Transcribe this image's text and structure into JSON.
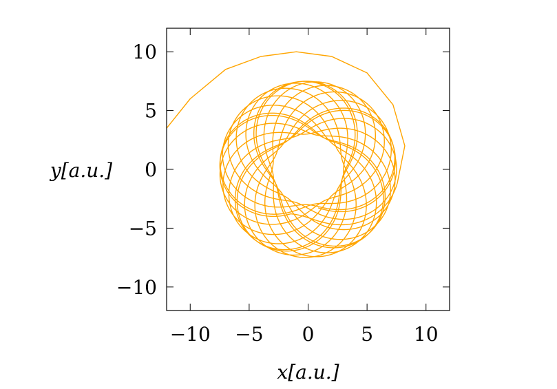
{
  "chart_data": {
    "type": "line",
    "title": "",
    "xlabel": "x[a.u.]",
    "ylabel": "y[a.u.]",
    "xlim": [
      -12,
      12
    ],
    "ylim": [
      -12,
      12
    ],
    "xticks": [
      {
        "value": -10,
        "label": "−10"
      },
      {
        "value": -5,
        "label": "−5"
      },
      {
        "value": 0,
        "label": "0"
      },
      {
        "value": 5,
        "label": "5"
      },
      {
        "value": 10,
        "label": "10"
      }
    ],
    "yticks": [
      {
        "value": 10,
        "label": "10"
      },
      {
        "value": 5,
        "label": "5"
      },
      {
        "value": 0,
        "label": "0"
      },
      {
        "value": -5,
        "label": "−5"
      },
      {
        "value": -10,
        "label": "−10"
      }
    ],
    "grid": false,
    "series": [
      {
        "color": "#FFA500",
        "description": "trajectory spiralling from the left edge into a ring between radius ~3 and ~7.5 around the origin",
        "start": [
          -12.0,
          3.5
        ],
        "outer_arc": [
          [
            -12.0,
            3.5
          ],
          [
            -10.0,
            6.0
          ],
          [
            -7.0,
            8.5
          ],
          [
            -4.0,
            9.6
          ],
          [
            -1.0,
            10.0
          ],
          [
            2.0,
            9.6
          ],
          [
            5.0,
            8.2
          ],
          [
            7.2,
            5.5
          ],
          [
            8.2,
            2.0
          ],
          [
            7.6,
            -1.0
          ]
        ],
        "ring_inner_radius": 3.0,
        "ring_outer_radius": 7.5
      }
    ]
  }
}
